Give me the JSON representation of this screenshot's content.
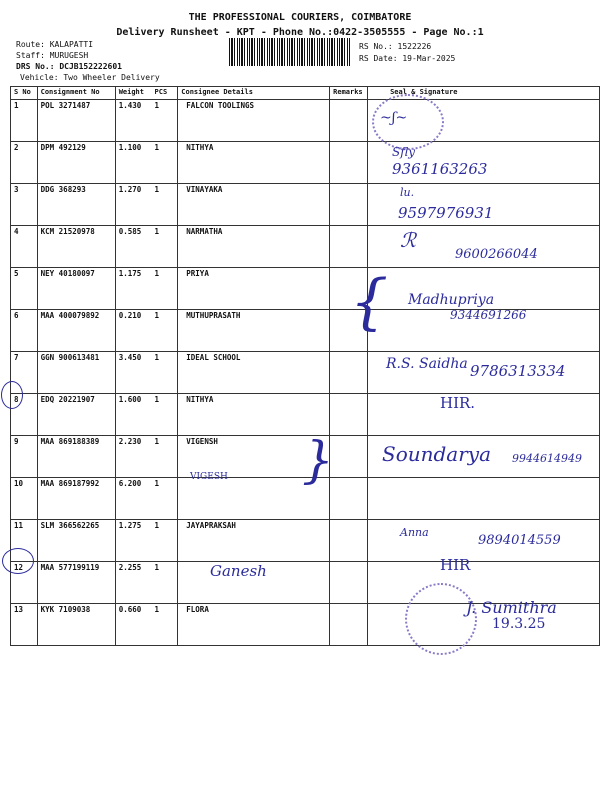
{
  "header": {
    "company": "THE PROFESSIONAL COURIERS, COIMBATORE",
    "subtitle": "Delivery Runsheet - KPT - Phone No.:0422-3505555 - Page No.:1",
    "route": "Route: KALAPATTI",
    "staff": "Staff: MURUGESH",
    "drs_no": "DRS No.: DCJB152222601",
    "vehicle": "Vehicle: Two Wheeler Delivery",
    "rs_no": "RS No.: 1522226",
    "rs_date": "RS Date: 19-Mar-2025"
  },
  "table": {
    "columns": [
      "S No",
      "Consignment No",
      "Weight",
      "PCS",
      "Consignee Details",
      "Remarks",
      "Seal & Signature"
    ],
    "rows": [
      {
        "sno": "1",
        "consignment": "POL 3271487",
        "weight": "1.430",
        "pcs": "1",
        "consignee": "FALCON TOOLINGS"
      },
      {
        "sno": "2",
        "consignment": "DPM 492129",
        "weight": "1.100",
        "pcs": "1",
        "consignee": "NITHYA"
      },
      {
        "sno": "3",
        "consignment": "DDG 368293",
        "weight": "1.270",
        "pcs": "1",
        "consignee": "VINAYAKA"
      },
      {
        "sno": "4",
        "consignment": "KCM 21520978",
        "weight": "0.585",
        "pcs": "1",
        "consignee": "NARMATHA"
      },
      {
        "sno": "5",
        "consignment": "NEY 40180097",
        "weight": "1.175",
        "pcs": "1",
        "consignee": "PRIYA"
      },
      {
        "sno": "6",
        "consignment": "MAA 400079892",
        "weight": "0.210",
        "pcs": "1",
        "consignee": "MUTHUPRASATH"
      },
      {
        "sno": "7",
        "consignment": "GGN 900613481",
        "weight": "3.450",
        "pcs": "1",
        "consignee": "IDEAL SCHOOL"
      },
      {
        "sno": "8",
        "consignment": "EDQ 20221907",
        "weight": "1.600",
        "pcs": "1",
        "consignee": "NITHYA"
      },
      {
        "sno": "9",
        "consignment": "MAA 869188389",
        "weight": "2.230",
        "pcs": "1",
        "consignee": "VIGENSH"
      },
      {
        "sno": "10",
        "consignment": "MAA 869187992",
        "weight": "6.200",
        "pcs": "1",
        "consignee": ""
      },
      {
        "sno": "11",
        "consignment": "SLM 366562265",
        "weight": "1.275",
        "pcs": "1",
        "consignee": "JAYAPRAKSAH"
      },
      {
        "sno": "12",
        "consignment": "MAA 577199119",
        "weight": "2.255",
        "pcs": "1",
        "consignee": ""
      },
      {
        "sno": "13",
        "consignment": "KYK 7109038",
        "weight": "0.660",
        "pcs": "1",
        "consignee": "FLORA"
      }
    ]
  },
  "handwritten": {
    "row2_phone": "9361163263",
    "row3_phone": "9597976931",
    "row4_phone": "9600266044",
    "row6_sig": "Madhupriya",
    "row6_phone": "9344691266",
    "row7_sig": "R.S. Saidha",
    "row7_phone": "9786313334",
    "row8_note": "HIR.",
    "row9_sig": "Soundarya",
    "row9_phone": "9944614949",
    "row10_name": "VIGESH",
    "row11_sig": "Anna",
    "row11_phone": "9894014559",
    "row12_note": "HIR",
    "row12_name": "Ganesh",
    "row13_sig": "J. Sumithra",
    "row13_date": "19.3.25"
  },
  "colors": {
    "ink": "#2b2b9c",
    "stamp": "#8a7ac8"
  }
}
